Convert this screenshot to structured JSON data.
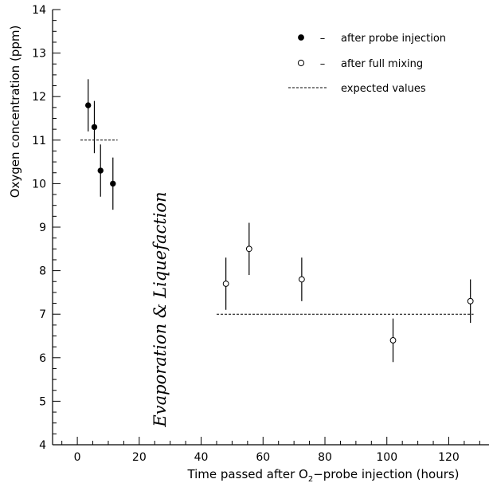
{
  "chart_data": {
    "type": "scatter",
    "xlabel": "Time passed after O",
    "xlabel_sub": "2",
    "xlabel_rest": "−probe injection (hours)",
    "ylabel": "Oxygen concentration (ppm)",
    "xlim": [
      -8,
      133
    ],
    "ylim": [
      4,
      14
    ],
    "x_ticks": [
      0,
      20,
      40,
      60,
      80,
      100,
      120
    ],
    "y_ticks": [
      4,
      5,
      6,
      7,
      8,
      9,
      10,
      11,
      12,
      13,
      14
    ],
    "grid": false,
    "legend_position": "top-right",
    "annotation": "Evaporation & Liquefaction",
    "series": [
      {
        "name": "after probe injection",
        "marker": "filled-circle",
        "points": [
          {
            "x": 3.5,
            "y": 11.8,
            "err": 0.6
          },
          {
            "x": 5.5,
            "y": 11.3,
            "err": 0.6
          },
          {
            "x": 7.5,
            "y": 10.3,
            "err": 0.6
          },
          {
            "x": 11.5,
            "y": 10.0,
            "err": 0.6
          }
        ]
      },
      {
        "name": "after full mixing",
        "marker": "open-circle",
        "points": [
          {
            "x": 48,
            "y": 7.7,
            "err": 0.6
          },
          {
            "x": 55.5,
            "y": 8.5,
            "err": 0.6
          },
          {
            "x": 72.5,
            "y": 7.8,
            "err": 0.5
          },
          {
            "x": 102,
            "y": 6.4,
            "err": 0.5
          },
          {
            "x": 127,
            "y": 7.3,
            "err": 0.5
          }
        ]
      }
    ],
    "reference_lines": {
      "name": "expected values",
      "segments": [
        {
          "x": [
            1,
            13
          ],
          "y": 11
        },
        {
          "x": [
            45,
            128
          ],
          "y": 7
        }
      ]
    },
    "legend_dash": "–"
  }
}
